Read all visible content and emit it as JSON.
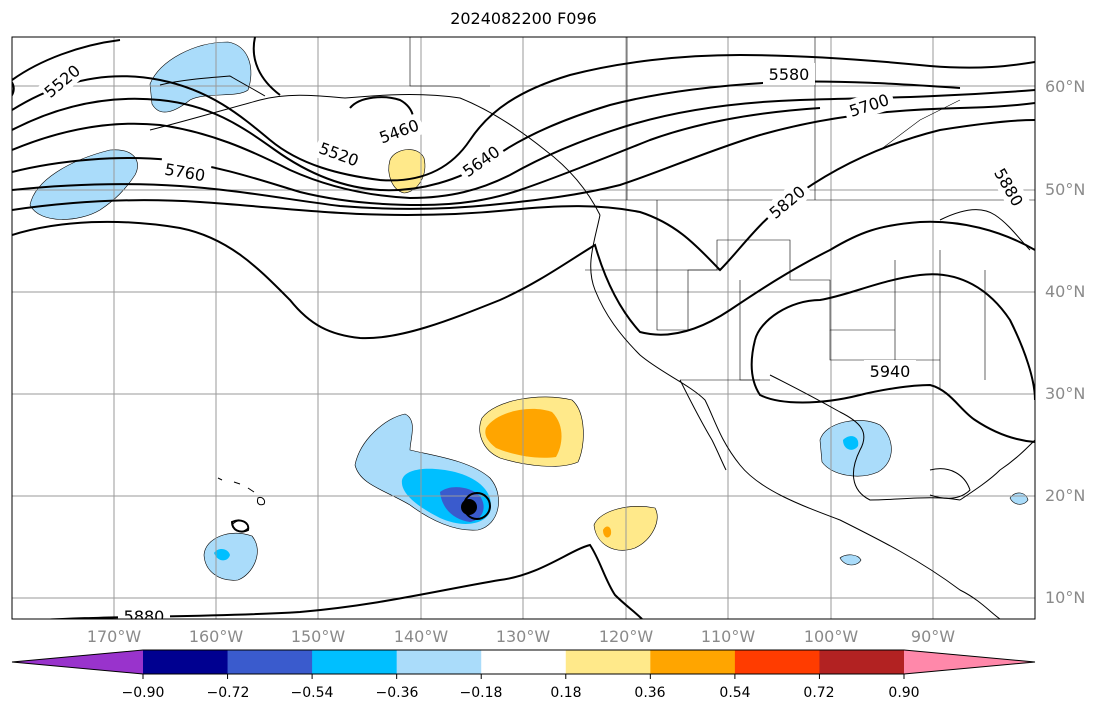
{
  "title": "2024082200 F096",
  "lat_ticks": [
    "60°N",
    "50°N",
    "40°N",
    "30°N",
    "20°N",
    "10°N"
  ],
  "lon_ticks": [
    "170°W",
    "160°W",
    "150°W",
    "140°W",
    "130°W",
    "120°W",
    "110°W",
    "100°W",
    "90°W"
  ],
  "contour_labels": [
    "5520",
    "5460",
    "5520",
    "5640",
    "5760",
    "5580",
    "5700",
    "5820",
    "5880",
    "5940",
    "5880"
  ],
  "colorbar": {
    "colors": [
      "#9933cc",
      "#000090",
      "#3a5bcd",
      "#00bfff",
      "#aadcfa",
      "#ffffff",
      "#ffe98a",
      "#ffa500",
      "#ff3c00",
      "#b22222",
      "#ff88aa"
    ],
    "tick_labels": [
      "−0.90",
      "−0.72",
      "−0.54",
      "−0.36",
      "−0.18",
      "0.18",
      "0.36",
      "0.54",
      "0.72",
      "0.90"
    ]
  },
  "colors": {
    "grid": "#9a9a9a",
    "contour": "#000000",
    "coast": "#000000"
  }
}
